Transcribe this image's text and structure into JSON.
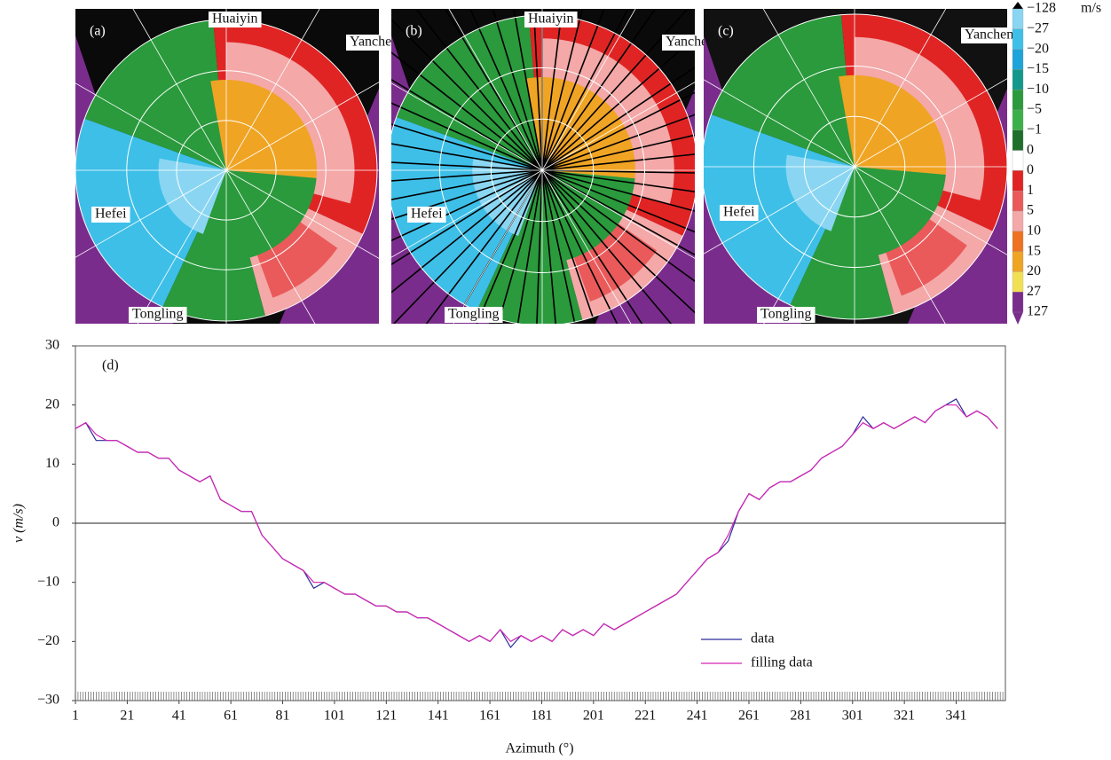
{
  "panels": [
    {
      "label": "(a)",
      "places": [
        "Huaiyin",
        "Yancheng",
        "Hefei",
        "Tongling"
      ]
    },
    {
      "label": "(b)",
      "places": [
        "Huaiyin",
        "Yancheng",
        "Hefei",
        "Tongling"
      ]
    },
    {
      "label": "(c)",
      "places": [
        "Yancheng",
        "Hefei",
        "Tongling"
      ]
    }
  ],
  "colorbar": {
    "unit": "m/s",
    "labels": [
      {
        "value": -128,
        "label": "−128"
      },
      {
        "value": -27,
        "label": "−27"
      },
      {
        "value": -20,
        "label": "−20"
      },
      {
        "value": -15,
        "label": "−15"
      },
      {
        "value": -10,
        "label": "−10"
      },
      {
        "value": -5,
        "label": "−5"
      },
      {
        "value": -1,
        "label": "−1"
      },
      0,
      0,
      1,
      5,
      10,
      15,
      20,
      27,
      127
    ],
    "colors": [
      "#8ad6f2",
      "#3ebfe8",
      "#1ea4da",
      "#15988c",
      "#2a9a3c",
      "#3cb048",
      "#1f6e2c",
      "#ffffff",
      "#e02424",
      "#ea5a5a",
      "#f4a8a8",
      "#ee7222",
      "#f0a424",
      "#f2e054",
      "#7a2c8c"
    ],
    "top_color": "#000000",
    "bottom_color": "#7a2c8c"
  },
  "chart_data": {
    "type": "line",
    "label": "(d)",
    "xlabel": "Azimuth (°)",
    "ylabel": "v (m/s)",
    "x": [
      1,
      5,
      9,
      13,
      17,
      21,
      25,
      29,
      33,
      37,
      41,
      45,
      49,
      53,
      57,
      61,
      65,
      69,
      73,
      77,
      81,
      85,
      89,
      93,
      97,
      101,
      105,
      109,
      113,
      117,
      121,
      125,
      129,
      133,
      137,
      141,
      145,
      149,
      153,
      157,
      161,
      165,
      169,
      173,
      177,
      181,
      185,
      189,
      193,
      197,
      201,
      205,
      209,
      213,
      217,
      221,
      225,
      229,
      233,
      237,
      241,
      245,
      249,
      253,
      257,
      261,
      265,
      269,
      273,
      277,
      281,
      285,
      289,
      293,
      297,
      301,
      305,
      309,
      313,
      317,
      321,
      325,
      329,
      333,
      337,
      341,
      345,
      349,
      353,
      357
    ],
    "series": [
      {
        "name": "data",
        "color": "#2a2a9a",
        "values": [
          16,
          17,
          14,
          14,
          14,
          13,
          12,
          12,
          11,
          11,
          9,
          8,
          7,
          8,
          4,
          3,
          2,
          2,
          -2,
          -4,
          -6,
          -7,
          -8,
          -11,
          -10,
          -11,
          -12,
          -12,
          -13,
          -14,
          -14,
          -15,
          -15,
          -16,
          -16,
          -17,
          -18,
          -19,
          -20,
          -19,
          -20,
          -18,
          -21,
          -19,
          -20,
          -19,
          -20,
          -18,
          -19,
          -18,
          -19,
          -17,
          -18,
          -17,
          -16,
          -15,
          -14,
          -13,
          -12,
          -10,
          -8,
          -6,
          -5,
          -3,
          2,
          5,
          4,
          6,
          7,
          7,
          8,
          9,
          11,
          12,
          13,
          15,
          18,
          16,
          17,
          16,
          17,
          18,
          17,
          19,
          20,
          21,
          18,
          19,
          18,
          16
        ]
      },
      {
        "name": "filling data",
        "color": "#d424b4",
        "values": [
          16,
          17,
          15,
          14,
          14,
          13,
          12,
          12,
          11,
          11,
          9,
          8,
          7,
          8,
          4,
          3,
          2,
          2,
          -2,
          -4,
          -6,
          -7,
          -8,
          -10,
          -10,
          -11,
          -12,
          -12,
          -13,
          -14,
          -14,
          -15,
          -15,
          -16,
          -16,
          -17,
          -18,
          -19,
          -20,
          -19,
          -20,
          -18,
          -20,
          -19,
          -20,
          -19,
          -20,
          -18,
          -19,
          -18,
          -19,
          -17,
          -18,
          -17,
          -16,
          -15,
          -14,
          -13,
          -12,
          -10,
          -8,
          -6,
          -5,
          -2,
          2,
          5,
          4,
          6,
          7,
          7,
          8,
          9,
          11,
          12,
          13,
          15,
          17,
          16,
          17,
          16,
          17,
          18,
          17,
          19,
          20,
          20,
          18,
          19,
          18,
          16
        ]
      }
    ],
    "xlim": [
      1,
      360
    ],
    "xticks": [
      1,
      21,
      41,
      61,
      81,
      101,
      121,
      141,
      161,
      181,
      201,
      221,
      241,
      261,
      281,
      301,
      321,
      341
    ],
    "ylim": [
      -30,
      30
    ],
    "yticks": [
      {
        "value": -30,
        "label": "−30"
      },
      {
        "value": -20,
        "label": "−20"
      },
      {
        "value": -10,
        "label": "−10"
      },
      0,
      10,
      20,
      30
    ],
    "legend": "lower right"
  }
}
